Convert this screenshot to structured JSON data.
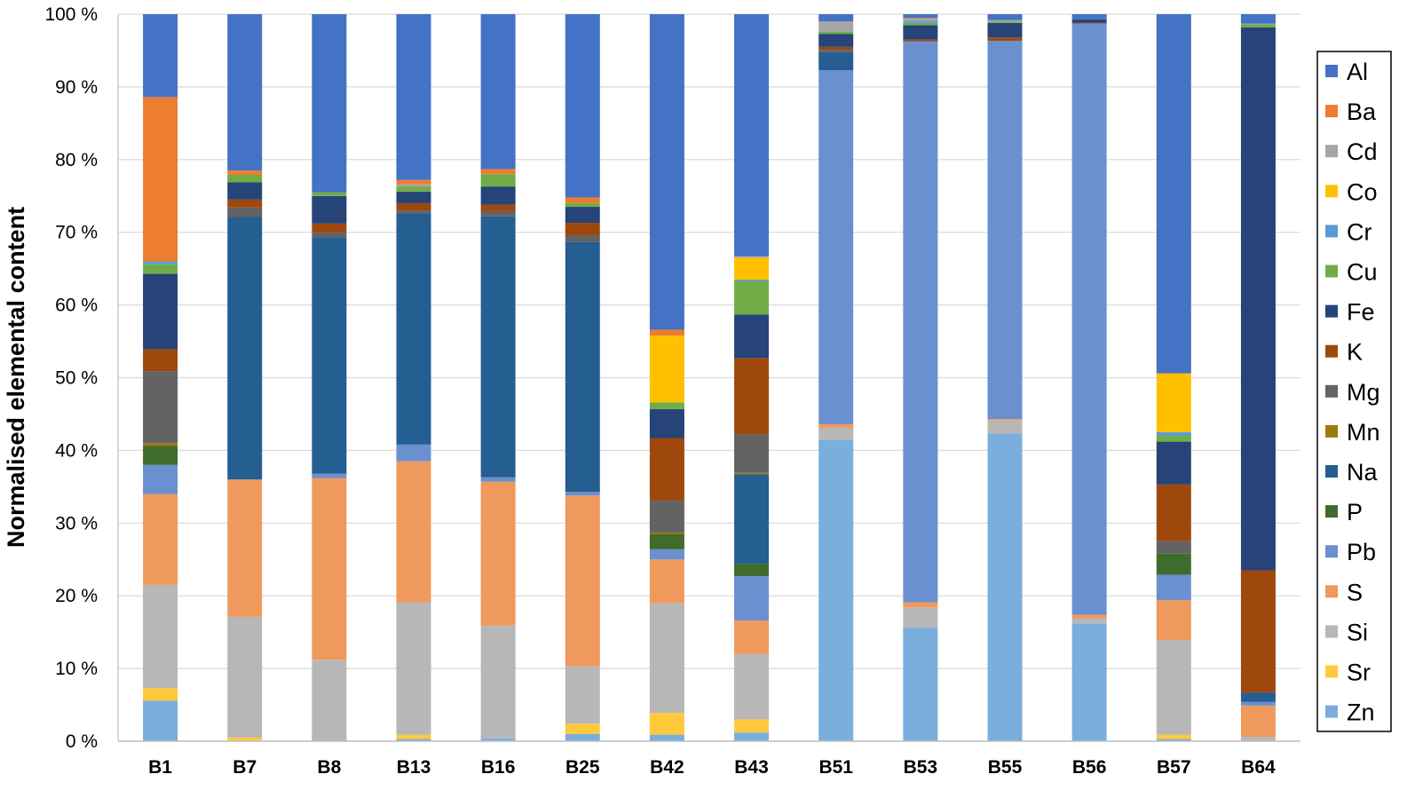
{
  "chart_data": {
    "type": "bar",
    "stacked": true,
    "title": "",
    "xlabel": "",
    "ylabel": "Normalised elemental content",
    "ylim": [
      0,
      100
    ],
    "yticks": [
      0,
      10,
      20,
      30,
      40,
      50,
      60,
      70,
      80,
      90,
      100
    ],
    "ytick_labels": [
      "0 %",
      "10 %",
      "20 %",
      "30 %",
      "40 %",
      "50 %",
      "60 %",
      "70 %",
      "80 %",
      "90 %",
      "100 %"
    ],
    "grid": true,
    "legend_position": "right",
    "categories": [
      "B1",
      "B7",
      "B8",
      "B13",
      "B16",
      "B25",
      "B42",
      "B43",
      "B51",
      "B53",
      "B55",
      "B56",
      "B57",
      "B64"
    ],
    "series": [
      {
        "name": "Zn",
        "color": "#7aaedc",
        "values": [
          5.6,
          0.0,
          0.0,
          0.3,
          0.4,
          1.0,
          0.9,
          1.2,
          41.4,
          15.6,
          42.3,
          16.2,
          0.3,
          0.0
        ]
      },
      {
        "name": "Sr",
        "color": "#ffc93c",
        "values": [
          1.7,
          0.5,
          0.0,
          0.6,
          0.0,
          1.4,
          3.0,
          1.8,
          0.0,
          0.0,
          0.0,
          0.0,
          0.6,
          0.0
        ]
      },
      {
        "name": "Si",
        "color": "#b7b7b7",
        "values": [
          14.2,
          16.6,
          11.2,
          18.2,
          15.5,
          7.9,
          15.1,
          9.0,
          1.7,
          2.8,
          1.8,
          0.7,
          13.0,
          0.6
        ]
      },
      {
        "name": "S",
        "color": "#f0995d",
        "values": [
          12.5,
          18.9,
          25.0,
          19.4,
          19.8,
          23.5,
          6.0,
          4.6,
          0.5,
          0.7,
          0.2,
          0.5,
          5.5,
          4.3
        ]
      },
      {
        "name": "Pb",
        "color": "#6a90d0",
        "values": [
          4.0,
          0.0,
          0.6,
          2.3,
          0.6,
          0.5,
          1.4,
          6.1,
          48.7,
          77.1,
          52.0,
          81.3,
          3.5,
          0.5
        ]
      },
      {
        "name": "P",
        "color": "#3f6c2c",
        "values": [
          2.6,
          0.0,
          0.0,
          0.0,
          0.0,
          0.0,
          2.1,
          1.7,
          0.0,
          0.0,
          0.0,
          0.0,
          2.9,
          0.0
        ]
      },
      {
        "name": "Na",
        "color": "#255e91",
        "values": [
          0.0,
          36.1,
          32.5,
          31.8,
          35.9,
          34.4,
          0.0,
          12.3,
          2.5,
          0.0,
          0.0,
          0.0,
          0.0,
          1.3
        ]
      },
      {
        "name": "Mn",
        "color": "#9c7b0c",
        "values": [
          0.4,
          0.0,
          0.0,
          0.0,
          0.0,
          0.0,
          0.2,
          0.2,
          0.0,
          0.0,
          0.0,
          0.0,
          0.0,
          0.0
        ]
      },
      {
        "name": "Mg",
        "color": "#636363",
        "values": [
          9.9,
          1.3,
          0.7,
          0.4,
          0.7,
          0.9,
          4.4,
          5.3,
          0.3,
          0.1,
          0.1,
          0.0,
          1.7,
          0.0
        ]
      },
      {
        "name": "K",
        "color": "#9e480e",
        "values": [
          3.0,
          1.1,
          1.2,
          1.0,
          0.9,
          1.7,
          8.6,
          10.5,
          0.4,
          0.2,
          0.4,
          0.1,
          7.8,
          16.8
        ]
      },
      {
        "name": "Fe",
        "color": "#264478",
        "values": [
          10.4,
          2.4,
          3.8,
          1.6,
          2.5,
          2.2,
          4.0,
          6.0,
          1.8,
          2.0,
          2.0,
          0.5,
          5.9,
          74.7
        ]
      },
      {
        "name": "Cu",
        "color": "#70ad47",
        "values": [
          1.3,
          1.0,
          0.5,
          0.7,
          1.7,
          0.5,
          0.9,
          4.6,
          0.3,
          0.3,
          0.2,
          0.0,
          0.8,
          0.4
        ]
      },
      {
        "name": "Cr",
        "color": "#5b9bd5",
        "values": [
          0.4,
          0.0,
          0.0,
          0.0,
          0.0,
          0.0,
          0.0,
          0.2,
          0.0,
          0.3,
          0.0,
          0.0,
          0.5,
          0.0
        ]
      },
      {
        "name": "Co",
        "color": "#ffc000",
        "values": [
          0.0,
          0.0,
          0.0,
          0.0,
          0.0,
          0.0,
          9.2,
          3.0,
          0.0,
          0.0,
          0.0,
          0.0,
          8.1,
          0.0
        ]
      },
      {
        "name": "Cd",
        "color": "#a5a5a5",
        "values": [
          0.0,
          0.0,
          0.0,
          0.3,
          0.0,
          0.0,
          0.0,
          0.2,
          1.4,
          0.3,
          0.2,
          0.0,
          0.0,
          0.1
        ]
      },
      {
        "name": "Ba",
        "color": "#ed7d31",
        "values": [
          22.6,
          0.6,
          0.0,
          0.6,
          0.7,
          0.8,
          0.8,
          0.0,
          0.0,
          0.1,
          0.0,
          0.0,
          0.0,
          0.0
        ]
      },
      {
        "name": "Al",
        "color": "#4472c4",
        "values": [
          11.4,
          21.5,
          24.5,
          22.8,
          21.3,
          25.2,
          43.4,
          33.3,
          1.0,
          0.5,
          0.8,
          0.7,
          49.4,
          1.3
        ]
      }
    ],
    "legend_order": [
      "Al",
      "Ba",
      "Cd",
      "Co",
      "Cr",
      "Cu",
      "Fe",
      "K",
      "Mg",
      "Mn",
      "Na",
      "P",
      "Pb",
      "S",
      "Si",
      "Sr",
      "Zn"
    ]
  }
}
